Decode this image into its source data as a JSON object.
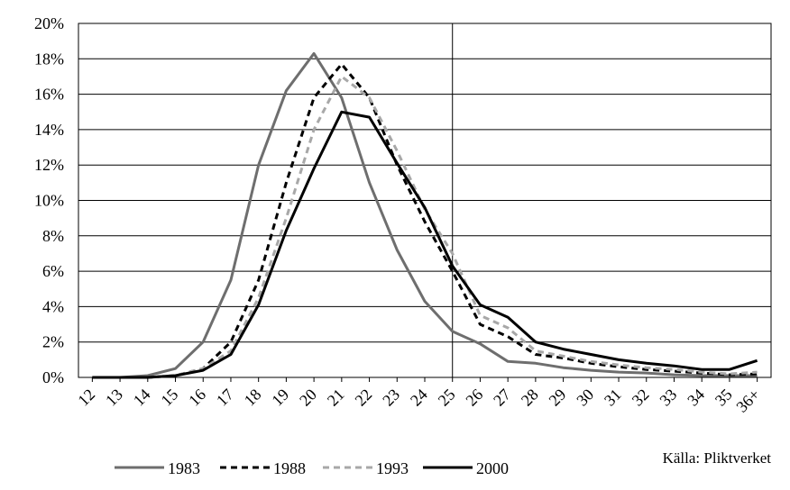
{
  "chart_data": {
    "type": "line",
    "title": "",
    "xlabel": "",
    "ylabel": "",
    "categories": [
      "12",
      "13",
      "14",
      "15",
      "16",
      "17",
      "18",
      "19",
      "20",
      "21",
      "22",
      "23",
      "24",
      "25",
      "26",
      "27",
      "28",
      "29",
      "30",
      "31",
      "32",
      "33",
      "34",
      "35",
      "36+"
    ],
    "ylim": [
      0,
      20
    ],
    "yticks": [
      0,
      2,
      4,
      6,
      8,
      10,
      12,
      14,
      16,
      18,
      20
    ],
    "ytick_labels": [
      "0%",
      "2%",
      "4%",
      "6%",
      "8%",
      "10%",
      "12%",
      "14%",
      "16%",
      "18%",
      "20%"
    ],
    "y_unit": "%",
    "grid": "horizontal",
    "vertical_reference_line_at": "25",
    "legend_position": "bottom",
    "source_note": "Källa: Pliktverket",
    "series": [
      {
        "name": "1983",
        "color": "#6e6e6e",
        "style": "solid",
        "values": [
          0.0,
          0.0,
          0.1,
          0.5,
          2.0,
          5.5,
          12.0,
          16.2,
          18.3,
          15.8,
          11.0,
          7.2,
          4.3,
          2.6,
          1.9,
          0.9,
          0.8,
          0.55,
          0.4,
          0.3,
          0.25,
          0.15,
          0.1,
          0.1,
          0.1
        ]
      },
      {
        "name": "1988",
        "color": "#000000",
        "style": "dashed",
        "values": [
          0.0,
          0.0,
          0.0,
          0.1,
          0.5,
          2.0,
          5.5,
          11.0,
          15.8,
          17.7,
          15.8,
          12.0,
          8.8,
          6.0,
          3.0,
          2.3,
          1.3,
          1.1,
          0.8,
          0.6,
          0.45,
          0.35,
          0.25,
          0.15,
          0.2
        ]
      },
      {
        "name": "1993",
        "color": "#a8a8a8",
        "style": "dashed",
        "values": [
          0.0,
          0.0,
          0.0,
          0.1,
          0.5,
          1.5,
          4.5,
          9.0,
          14.0,
          17.0,
          15.8,
          12.8,
          9.5,
          7.0,
          3.5,
          2.8,
          1.5,
          1.2,
          0.9,
          0.7,
          0.55,
          0.45,
          0.3,
          0.2,
          0.3
        ]
      },
      {
        "name": "2000",
        "color": "#000000",
        "style": "solid",
        "values": [
          0.0,
          0.0,
          0.0,
          0.1,
          0.4,
          1.3,
          4.1,
          8.3,
          11.8,
          15.0,
          14.7,
          12.1,
          9.6,
          6.3,
          4.1,
          3.4,
          2.0,
          1.6,
          1.3,
          1.0,
          0.8,
          0.65,
          0.45,
          0.45,
          0.95
        ]
      }
    ]
  }
}
